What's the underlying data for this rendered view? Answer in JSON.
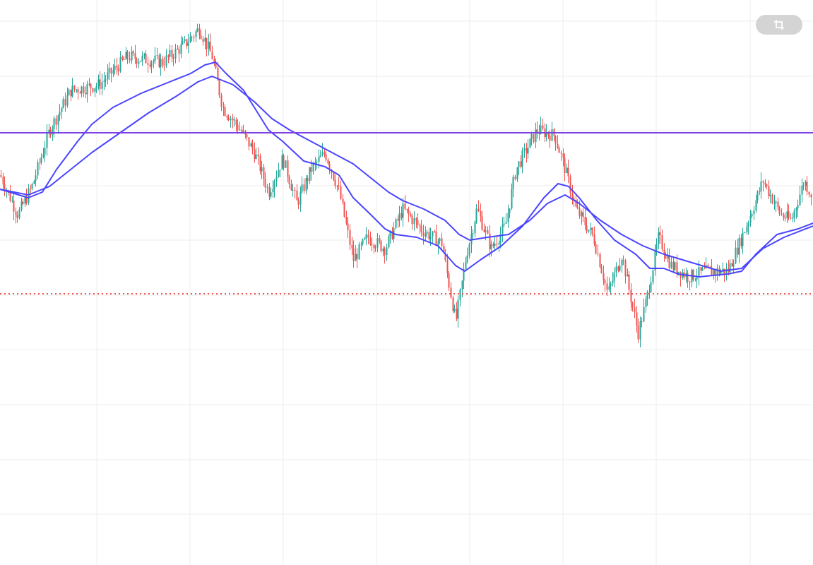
{
  "colors": {
    "background": "#ffffff",
    "grid": "#eeeeee",
    "up_candle": "#26a69a",
    "down_candle": "#ef5350",
    "moving_average": "#4b45ff",
    "horizontal_line": "#7b3fe4",
    "dotted_level": "#ef5350"
  },
  "toolbar": {
    "crop_icon": "crop-icon"
  },
  "chart_data": {
    "type": "candlestick",
    "title": "",
    "xlabel": "",
    "ylabel": "",
    "ylim": [
      0,
      100
    ],
    "xlim": [
      0,
      1151
    ],
    "grid": true,
    "legend": "none",
    "price_path": [
      [
        0,
        69
      ],
      [
        25,
        62
      ],
      [
        45,
        67
      ],
      [
        70,
        77
      ],
      [
        100,
        84
      ],
      [
        140,
        85
      ],
      [
        180,
        90
      ],
      [
        230,
        89
      ],
      [
        260,
        92
      ],
      [
        282,
        95
      ],
      [
        300,
        90
      ],
      [
        315,
        81
      ],
      [
        340,
        77
      ],
      [
        360,
        73
      ],
      [
        380,
        66
      ],
      [
        400,
        72
      ],
      [
        420,
        64
      ],
      [
        440,
        70
      ],
      [
        460,
        73
      ],
      [
        480,
        66
      ],
      [
        500,
        54
      ],
      [
        520,
        58
      ],
      [
        545,
        56
      ],
      [
        570,
        63
      ],
      [
        600,
        59
      ],
      [
        625,
        57
      ],
      [
        645,
        43
      ],
      [
        660,
        55
      ],
      [
        675,
        63
      ],
      [
        695,
        56
      ],
      [
        715,
        60
      ],
      [
        730,
        70
      ],
      [
        760,
        77
      ],
      [
        785,
        76
      ],
      [
        800,
        70
      ],
      [
        815,
        63
      ],
      [
        840,
        58
      ],
      [
        860,
        48
      ],
      [
        880,
        55
      ],
      [
        903,
        41
      ],
      [
        915,
        47
      ],
      [
        932,
        58
      ],
      [
        950,
        53
      ],
      [
        975,
        51
      ],
      [
        1000,
        52
      ],
      [
        1030,
        52
      ],
      [
        1050,
        58
      ],
      [
        1080,
        68
      ],
      [
        1105,
        62
      ],
      [
        1120,
        61
      ],
      [
        1138,
        68
      ],
      [
        1151,
        65
      ]
    ],
    "moving_average_fast": [
      [
        0,
        66.5
      ],
      [
        40,
        65
      ],
      [
        60,
        66
      ],
      [
        80,
        70
      ],
      [
        110,
        75
      ],
      [
        130,
        78
      ],
      [
        160,
        81
      ],
      [
        200,
        83.5
      ],
      [
        240,
        85.5
      ],
      [
        270,
        87
      ],
      [
        290,
        88.5
      ],
      [
        305,
        89
      ],
      [
        320,
        87
      ],
      [
        345,
        84
      ],
      [
        360,
        81
      ],
      [
        380,
        77
      ],
      [
        400,
        75
      ],
      [
        430,
        71.5
      ],
      [
        460,
        70.5
      ],
      [
        480,
        69
      ],
      [
        500,
        65
      ],
      [
        525,
        62
      ],
      [
        545,
        59.5
      ],
      [
        560,
        58.5
      ],
      [
        590,
        58
      ],
      [
        620,
        56.5
      ],
      [
        645,
        53
      ],
      [
        658,
        52
      ],
      [
        680,
        54
      ],
      [
        710,
        56.5
      ],
      [
        740,
        60
      ],
      [
        770,
        65
      ],
      [
        790,
        67.5
      ],
      [
        805,
        67
      ],
      [
        820,
        65
      ],
      [
        845,
        61
      ],
      [
        870,
        57.5
      ],
      [
        900,
        55
      ],
      [
        920,
        52.5
      ],
      [
        940,
        52.5
      ],
      [
        960,
        51.5
      ],
      [
        990,
        51
      ],
      [
        1030,
        51.5
      ],
      [
        1050,
        52
      ],
      [
        1070,
        55
      ],
      [
        1100,
        58.5
      ],
      [
        1130,
        59.5
      ],
      [
        1151,
        60.5
      ]
    ],
    "moving_average_slow": [
      [
        0,
        66.5
      ],
      [
        40,
        65.5
      ],
      [
        70,
        67
      ],
      [
        100,
        70
      ],
      [
        130,
        73
      ],
      [
        170,
        76.5
      ],
      [
        210,
        80
      ],
      [
        250,
        83
      ],
      [
        280,
        85.5
      ],
      [
        300,
        86.5
      ],
      [
        330,
        85
      ],
      [
        360,
        82
      ],
      [
        385,
        79
      ],
      [
        410,
        77
      ],
      [
        440,
        75
      ],
      [
        470,
        73
      ],
      [
        500,
        71
      ],
      [
        530,
        68
      ],
      [
        550,
        66
      ],
      [
        570,
        64.5
      ],
      [
        600,
        63
      ],
      [
        630,
        61
      ],
      [
        650,
        58.5
      ],
      [
        665,
        57.5
      ],
      [
        690,
        58
      ],
      [
        720,
        58.5
      ],
      [
        750,
        61
      ],
      [
        775,
        64
      ],
      [
        800,
        65.5
      ],
      [
        820,
        64
      ],
      [
        850,
        61
      ],
      [
        880,
        58.5
      ],
      [
        910,
        56.5
      ],
      [
        940,
        55
      ],
      [
        980,
        53.5
      ],
      [
        1020,
        52
      ],
      [
        1050,
        52.5
      ],
      [
        1080,
        56
      ],
      [
        1110,
        58
      ],
      [
        1151,
        60
      ]
    ],
    "horizontal_line": 76.5,
    "dotted_line": 48
  }
}
